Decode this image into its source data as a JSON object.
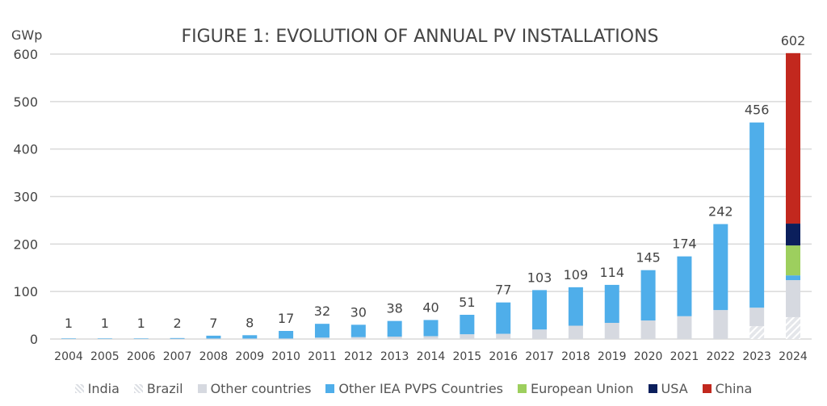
{
  "chart_data": {
    "type": "bar",
    "stacked": true,
    "title": "FIGURE 1: EVOLUTION OF ANNUAL PV INSTALLATIONS",
    "ylabel": "GWp",
    "xlabel": "",
    "ylim": [
      0,
      600
    ],
    "yticks": [
      0,
      100,
      200,
      300,
      400,
      500,
      600
    ],
    "grid": true,
    "legend_position": "bottom",
    "categories": [
      "2004",
      "2005",
      "2006",
      "2007",
      "2008",
      "2009",
      "2010",
      "2011",
      "2012",
      "2013",
      "2014",
      "2015",
      "2016",
      "2017",
      "2018",
      "2019",
      "2020",
      "2021",
      "2022",
      "2023",
      "2024"
    ],
    "totals": [
      1,
      1,
      1,
      2,
      7,
      8,
      17,
      32,
      30,
      38,
      40,
      51,
      77,
      103,
      109,
      114,
      145,
      174,
      242,
      456,
      602
    ],
    "series": [
      {
        "name": "India",
        "color": "#e4e6ea",
        "hatched": true,
        "values": [
          0,
          0,
          0,
          0,
          0,
          0,
          0,
          0,
          0,
          0,
          0,
          0,
          0,
          0,
          0,
          0,
          0,
          0,
          0,
          15,
          31
        ]
      },
      {
        "name": "Brazil",
        "color": "#e4e6ea",
        "hatched": true,
        "values": [
          0,
          0,
          0,
          0,
          0,
          0,
          0,
          0,
          0,
          0,
          0,
          0,
          0,
          0,
          0,
          0,
          0,
          0,
          0,
          12,
          15
        ]
      },
      {
        "name": "Other countries",
        "color": "#d6d9e0",
        "values": [
          0,
          0,
          0,
          0.5,
          1,
          1,
          1,
          3,
          4,
          5,
          6,
          10,
          11,
          20,
          28,
          34,
          39,
          48,
          61,
          39,
          78
        ]
      },
      {
        "name": "Other IEA PVPS Countries",
        "color": "#4faeea",
        "values": [
          1,
          1,
          1,
          1.5,
          6,
          7,
          16,
          29,
          26,
          33,
          34,
          41,
          66,
          83,
          81,
          80,
          106,
          126,
          181,
          390,
          10
        ]
      },
      {
        "name": "European Union",
        "color": "#9dcf5e",
        "values": [
          0,
          0,
          0,
          0,
          0,
          0,
          0,
          0,
          0,
          0,
          0,
          0,
          0,
          0,
          0,
          0,
          0,
          0,
          0,
          0,
          63
        ]
      },
      {
        "name": "USA",
        "color": "#0b1f5c",
        "values": [
          0,
          0,
          0,
          0,
          0,
          0,
          0,
          0,
          0,
          0,
          0,
          0,
          0,
          0,
          0,
          0,
          0,
          0,
          0,
          0,
          46
        ]
      },
      {
        "name": "China",
        "color": "#c2281e",
        "values": [
          0,
          0,
          0,
          0,
          0,
          0,
          0,
          0,
          0,
          0,
          0,
          0,
          0,
          0,
          0,
          0,
          0,
          0,
          0,
          0,
          359
        ]
      }
    ]
  }
}
